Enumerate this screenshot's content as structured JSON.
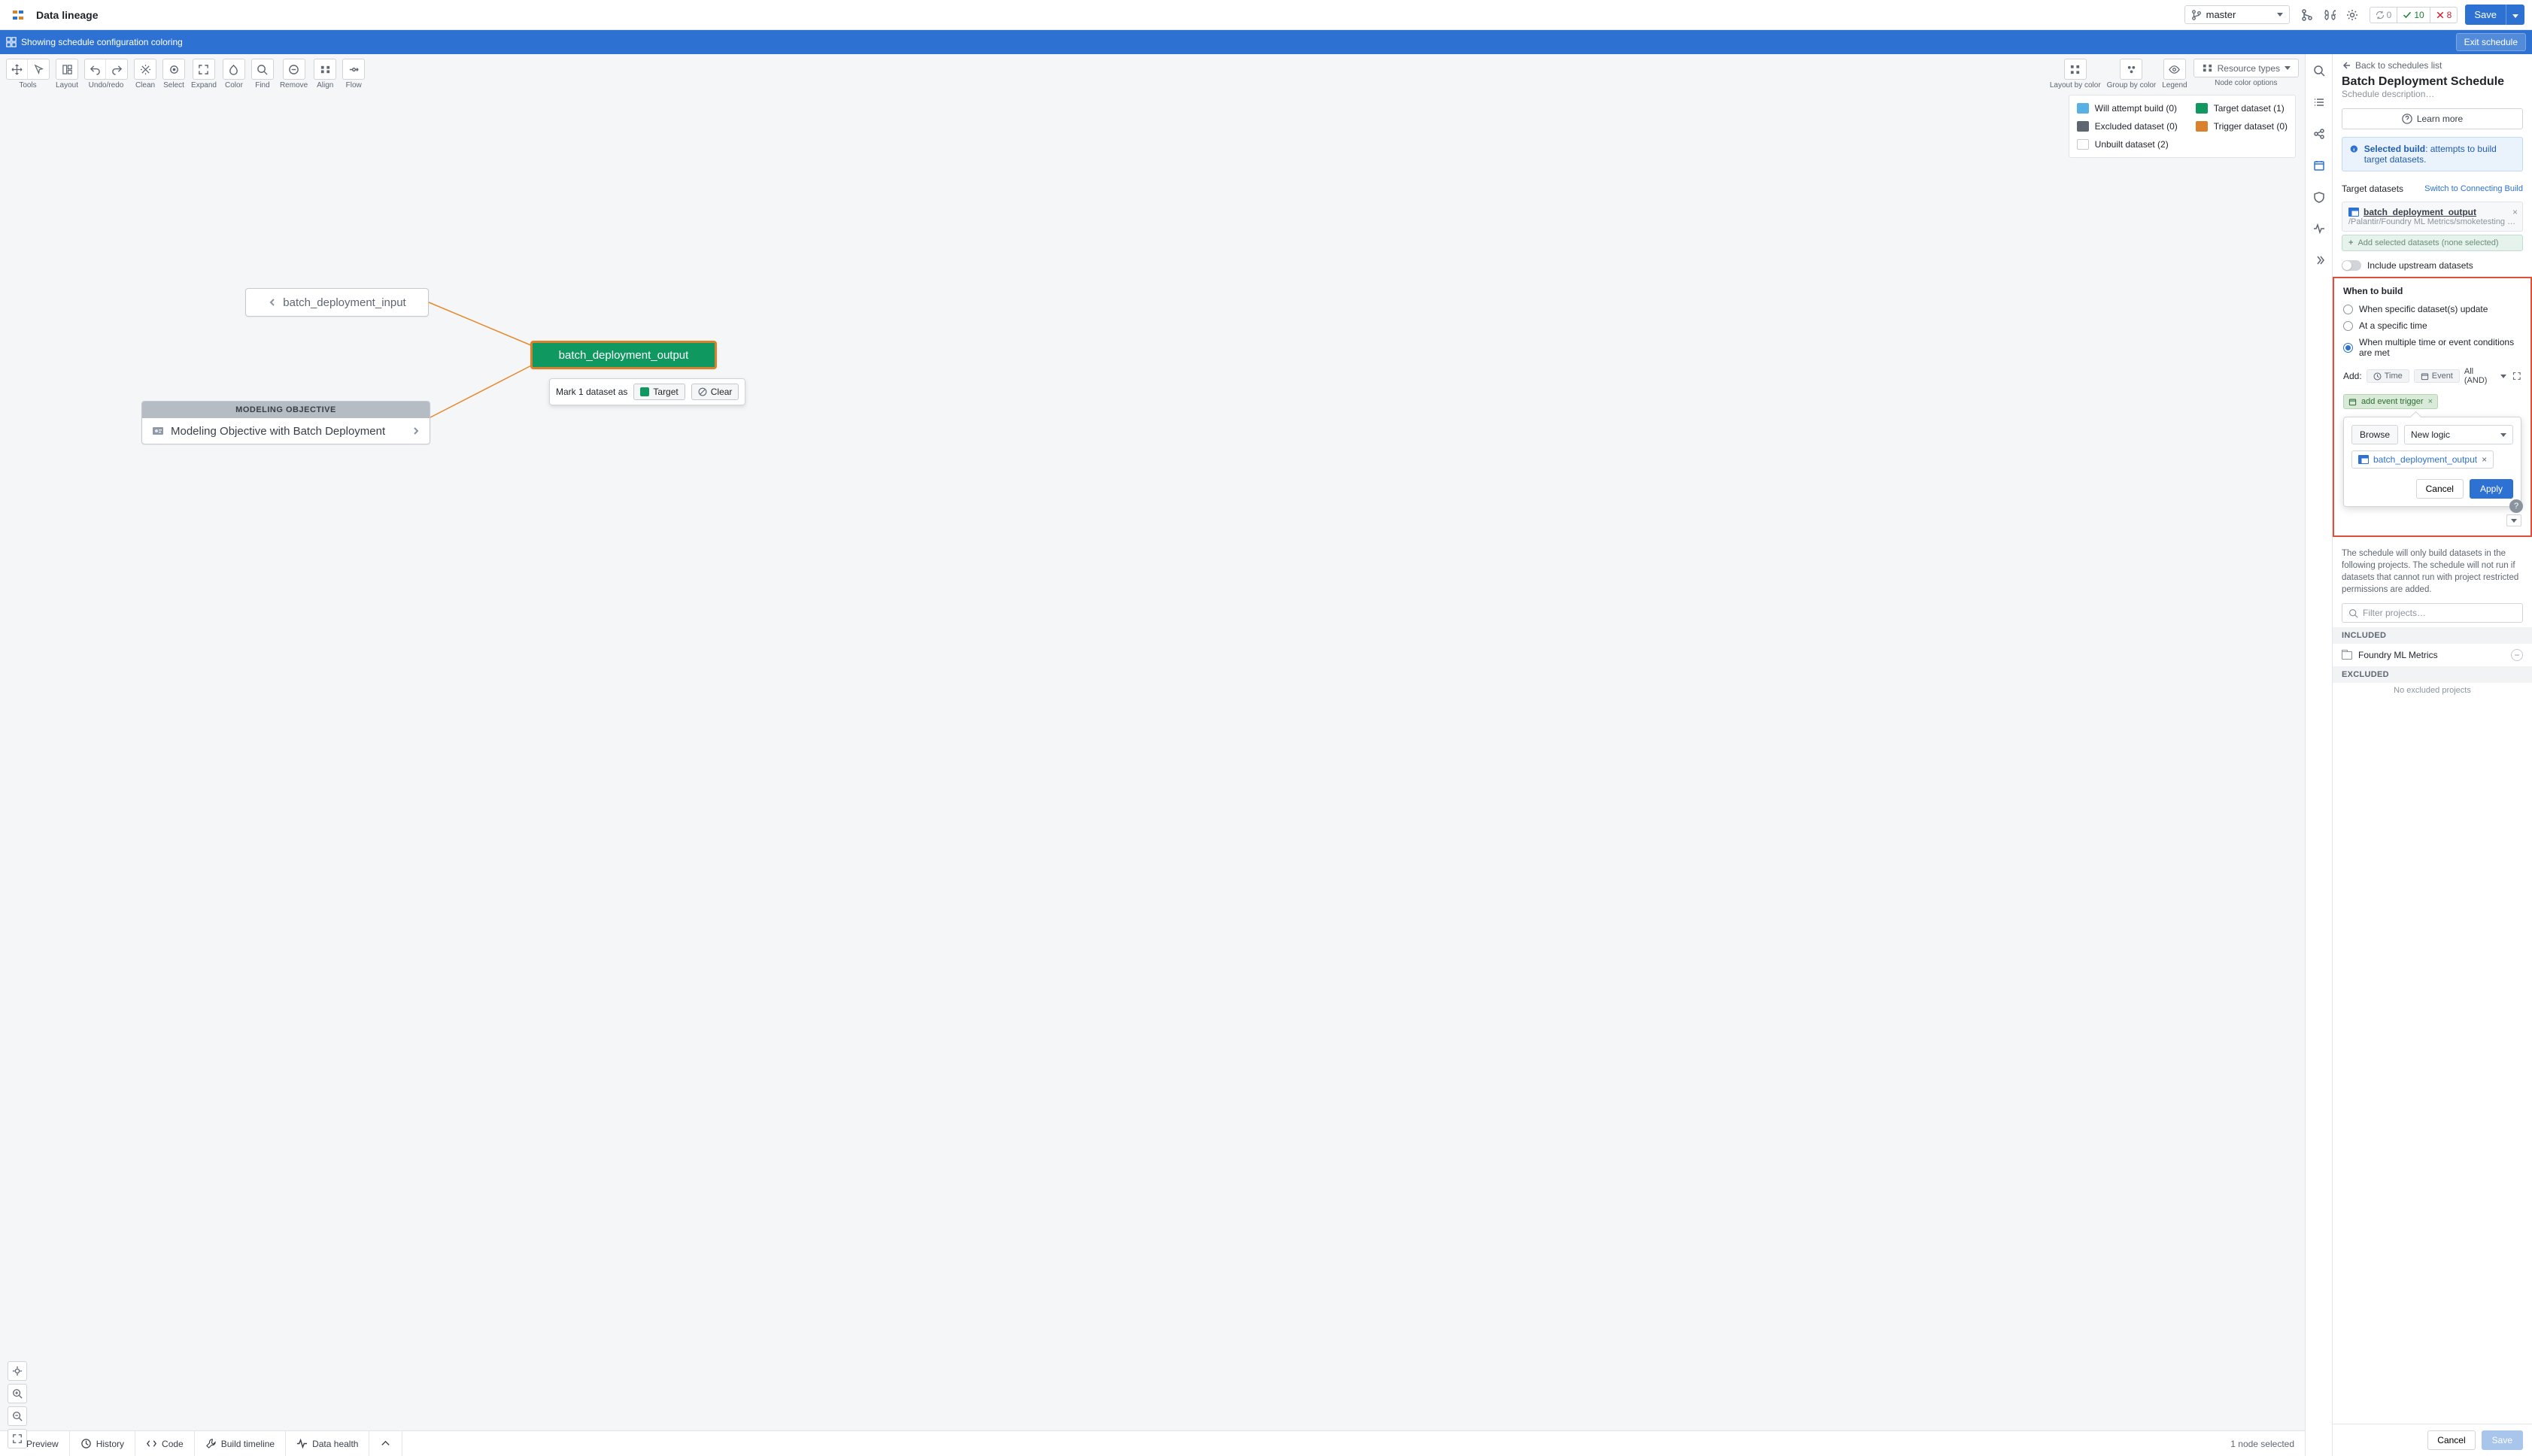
{
  "header": {
    "title": "Data lineage",
    "branch": "master",
    "status": {
      "refresh": "0",
      "ok": "10",
      "err": "8"
    },
    "save": "Save"
  },
  "blueBar": {
    "text": "Showing schedule configuration coloring",
    "exit": "Exit schedule"
  },
  "toolbar": {
    "groups": [
      {
        "label": "Tools",
        "icons": [
          "move",
          "pointer"
        ]
      },
      {
        "label": "Layout",
        "icons": [
          "layout"
        ]
      },
      {
        "label": "Undo/redo",
        "icons": [
          "undo",
          "redo"
        ]
      },
      {
        "label": "Clean",
        "icons": [
          "clean"
        ]
      },
      {
        "label": "Select",
        "icons": [
          "select"
        ]
      },
      {
        "label": "Expand",
        "icons": [
          "expand"
        ]
      },
      {
        "label": "Color",
        "icons": [
          "color"
        ]
      },
      {
        "label": "Find",
        "icons": [
          "find"
        ]
      },
      {
        "label": "Remove",
        "icons": [
          "remove"
        ]
      },
      {
        "label": "Align",
        "icons": [
          "align"
        ]
      },
      {
        "label": "Flow",
        "icons": [
          "flow"
        ]
      }
    ],
    "right": [
      {
        "label": "Layout by color",
        "icons": [
          "grid"
        ]
      },
      {
        "label": "Group by color",
        "icons": [
          "group"
        ]
      },
      {
        "label": "Legend",
        "icons": [
          "eye"
        ]
      }
    ],
    "resourceTypes": "Resource types",
    "nodeColorOptions": "Node color options"
  },
  "legend": {
    "items": [
      {
        "label": "Will attempt build (0)",
        "color": "#58b1e4"
      },
      {
        "label": "Target dataset (1)",
        "color": "#0f9960"
      },
      {
        "label": "Excluded dataset (0)",
        "color": "#5e6672"
      },
      {
        "label": "Trigger dataset (0)",
        "color": "#d9822b"
      },
      {
        "label": "Unbuilt dataset (2)",
        "color": "#ffffff"
      }
    ]
  },
  "canvas": {
    "connector_color": "#e68a2e",
    "input": {
      "label": "batch_deployment_input"
    },
    "output": {
      "label": "batch_deployment_output",
      "bg": "#0f9960",
      "border": "#d9822b"
    },
    "objective": {
      "header": "MODELING OBJECTIVE",
      "label": "Modeling Objective with Batch Deployment"
    },
    "markPopover": {
      "prefix": "Mark 1 dataset as",
      "targetLabel": "Target",
      "clearLabel": "Clear",
      "swatch": "#0f9960"
    }
  },
  "footer": {
    "tabs": [
      {
        "icon": "table",
        "label": "Preview"
      },
      {
        "icon": "history",
        "label": "History"
      },
      {
        "icon": "code",
        "label": "Code"
      },
      {
        "icon": "wrench",
        "label": "Build timeline"
      },
      {
        "icon": "pulse",
        "label": "Data health"
      }
    ],
    "selected": "1 node selected"
  },
  "panel": {
    "back": "Back to schedules list",
    "title": "Batch Deployment Schedule",
    "subtitle": "Schedule description…",
    "learnMore": "Learn more",
    "infoBox": {
      "bold": "Selected build",
      "rest": ": attempts to build target datasets."
    },
    "targetsHead": "Target datasets",
    "switchLink": "Switch to Connecting Build",
    "dataset": {
      "name": "batch_deployment_output",
      "path": "/Palantir/Foundry ML Metrics/smoketesting …"
    },
    "addSelected": "Add selected datasets (none selected)",
    "includeUpstream": "Include upstream datasets",
    "whenHead": "When to build",
    "radios": [
      "When specific dataset(s) update",
      "At a specific time",
      "When multiple time or event conditions are met"
    ],
    "selectedRadio": 2,
    "addRow": {
      "label": "Add:",
      "time": "Time",
      "event": "Event",
      "allAnd": "All (AND)"
    },
    "chip": "add event trigger",
    "popover": {
      "browse": "Browse",
      "newLogic": "New logic",
      "dataset": "batch_deployment_output",
      "cancel": "Cancel",
      "apply": "Apply"
    },
    "desc": "The schedule will only build datasets in the following projects. The schedule will not run if datasets that cannot run with project restricted permissions are added.",
    "filterPlaceholder": "Filter projects…",
    "included": {
      "head": "INCLUDED",
      "item": "Foundry ML Metrics"
    },
    "excluded": {
      "head": "EXCLUDED",
      "empty": "No excluded projects"
    },
    "footer": {
      "cancel": "Cancel",
      "save": "Save"
    }
  }
}
